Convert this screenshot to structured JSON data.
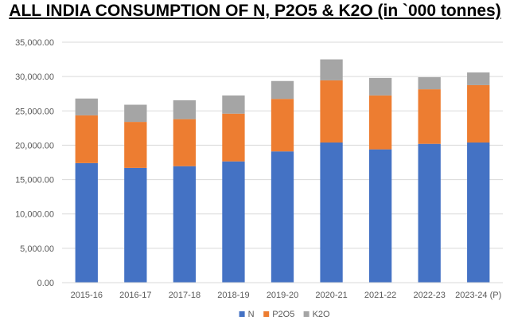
{
  "chart_data": {
    "type": "bar",
    "stacked": true,
    "title": "ALL INDIA CONSUMPTION OF N, P2O5 & K2O (in `000 tonnes)",
    "xlabel": "",
    "ylabel": "",
    "ylim": [
      0,
      35000
    ],
    "yticks": [
      "0.00",
      "5,000.00",
      "10,000.00",
      "15,000.00",
      "20,000.00",
      "25,000.00",
      "30,000.00",
      "35,000.00"
    ],
    "ytick_values": [
      0,
      5000,
      10000,
      15000,
      20000,
      25000,
      30000,
      35000
    ],
    "grid": true,
    "legend_position": "bottom",
    "categories": [
      "2015-16",
      "2016-17",
      "2017-18",
      "2018-19",
      "2019-20",
      "2020-21",
      "2021-22",
      "2022-23",
      "2023-24 (P)"
    ],
    "series": [
      {
        "name": "N",
        "color": "#4472C4",
        "values": [
          17400,
          16700,
          16950,
          17650,
          19100,
          20400,
          19400,
          20200,
          20400
        ]
      },
      {
        "name": "P2O5",
        "color": "#ED7D31",
        "values": [
          6950,
          6700,
          6850,
          6950,
          7650,
          9050,
          7850,
          7950,
          8350
        ]
      },
      {
        "name": "K2O",
        "color": "#A5A5A5",
        "values": [
          2450,
          2500,
          2750,
          2650,
          2600,
          3050,
          2550,
          1750,
          1850
        ]
      }
    ]
  }
}
